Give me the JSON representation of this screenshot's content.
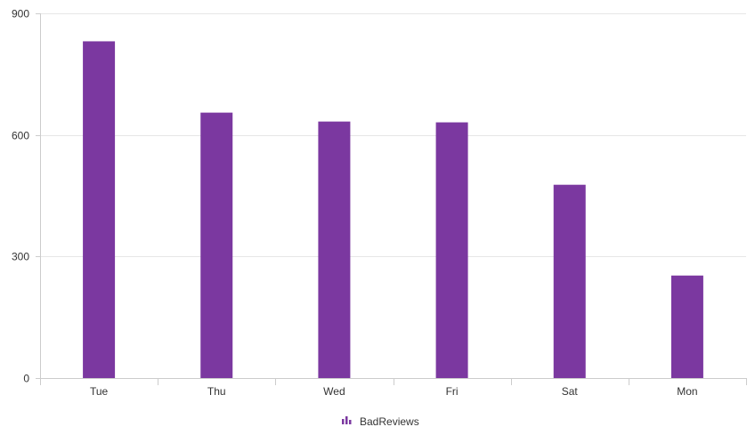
{
  "chart_data": {
    "type": "bar",
    "categories": [
      "Tue",
      "Thu",
      "Wed",
      "Fri",
      "Sat",
      "Mon"
    ],
    "series": [
      {
        "name": "BadReviews",
        "values": [
          831,
          655,
          633,
          631,
          477,
          253
        ],
        "color": "#7b38a0"
      }
    ],
    "y_ticks": [
      0,
      300,
      600,
      900
    ],
    "ylim": [
      0,
      900
    ],
    "grid": true,
    "legend": "bottom-center"
  },
  "legend_icon": "bar-chart-icon"
}
